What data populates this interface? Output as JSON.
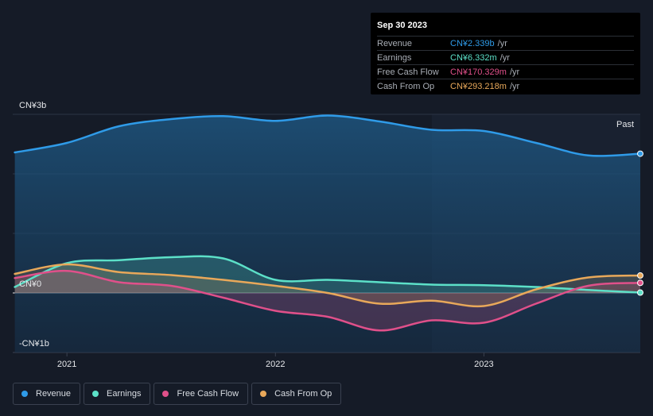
{
  "tooltip": {
    "date": "Sep 30 2023",
    "rows": [
      {
        "label": "Revenue",
        "value": "CN¥2.339b",
        "unit": "/yr",
        "color": "#2f9be8"
      },
      {
        "label": "Earnings",
        "value": "CN¥6.332m",
        "unit": "/yr",
        "color": "#5ce0c8"
      },
      {
        "label": "Free Cash Flow",
        "value": "CN¥170.329m",
        "unit": "/yr",
        "color": "#e0508a"
      },
      {
        "label": "Cash From Op",
        "value": "CN¥293.218m",
        "unit": "/yr",
        "color": "#e8a85a"
      }
    ]
  },
  "legend": [
    {
      "label": "Revenue",
      "color": "#2f9be8"
    },
    {
      "label": "Earnings",
      "color": "#5ce0c8"
    },
    {
      "label": "Free Cash Flow",
      "color": "#e0508a"
    },
    {
      "label": "Cash From Op",
      "color": "#e8a85a"
    }
  ],
  "chart_data": {
    "type": "line",
    "y_unit": "CN¥ billions",
    "ylim": [
      -1,
      3
    ],
    "xlim": [
      2020.74,
      2023.75
    ],
    "y_tick_labels": [
      {
        "value": 3,
        "label": "CN¥3b"
      },
      {
        "value": 0,
        "label": "CN¥0"
      },
      {
        "value": -1,
        "label": "-CN¥1b"
      }
    ],
    "x_ticks": [
      {
        "value": 2021,
        "label": "2021"
      },
      {
        "value": 2022,
        "label": "2022"
      },
      {
        "value": 2023,
        "label": "2023"
      }
    ],
    "past_label": "Past",
    "past_start": 2022.75,
    "series": [
      {
        "name": "Revenue",
        "color": "#2f9be8",
        "x": [
          2020.75,
          2021.0,
          2021.25,
          2021.5,
          2021.75,
          2022.0,
          2022.25,
          2022.5,
          2022.75,
          2023.0,
          2023.25,
          2023.5,
          2023.75
        ],
        "values": [
          2.36,
          2.52,
          2.8,
          2.92,
          2.97,
          2.89,
          2.98,
          2.88,
          2.74,
          2.72,
          2.52,
          2.31,
          2.339
        ]
      },
      {
        "name": "Earnings",
        "color": "#5ce0c8",
        "x": [
          2020.75,
          2021.0,
          2021.25,
          2021.5,
          2021.75,
          2022.0,
          2022.25,
          2022.5,
          2022.75,
          2023.0,
          2023.25,
          2023.5,
          2023.75
        ],
        "values": [
          0.1,
          0.5,
          0.55,
          0.6,
          0.58,
          0.22,
          0.22,
          0.18,
          0.14,
          0.13,
          0.1,
          0.05,
          0.006
        ]
      },
      {
        "name": "Free Cash Flow",
        "color": "#e0508a",
        "x": [
          2020.75,
          2021.0,
          2021.25,
          2021.5,
          2021.75,
          2022.0,
          2022.25,
          2022.5,
          2022.75,
          2023.0,
          2023.25,
          2023.5,
          2023.75
        ],
        "values": [
          0.25,
          0.37,
          0.18,
          0.12,
          -0.08,
          -0.3,
          -0.4,
          -0.63,
          -0.46,
          -0.5,
          -0.18,
          0.12,
          0.17
        ]
      },
      {
        "name": "Cash From Op",
        "color": "#e8a85a",
        "x": [
          2020.75,
          2021.0,
          2021.25,
          2021.5,
          2021.75,
          2022.0,
          2022.25,
          2022.5,
          2022.75,
          2023.0,
          2023.25,
          2023.5,
          2023.75
        ],
        "values": [
          0.32,
          0.48,
          0.35,
          0.3,
          0.22,
          0.12,
          0.0,
          -0.18,
          -0.13,
          -0.22,
          0.06,
          0.26,
          0.293
        ]
      }
    ]
  }
}
